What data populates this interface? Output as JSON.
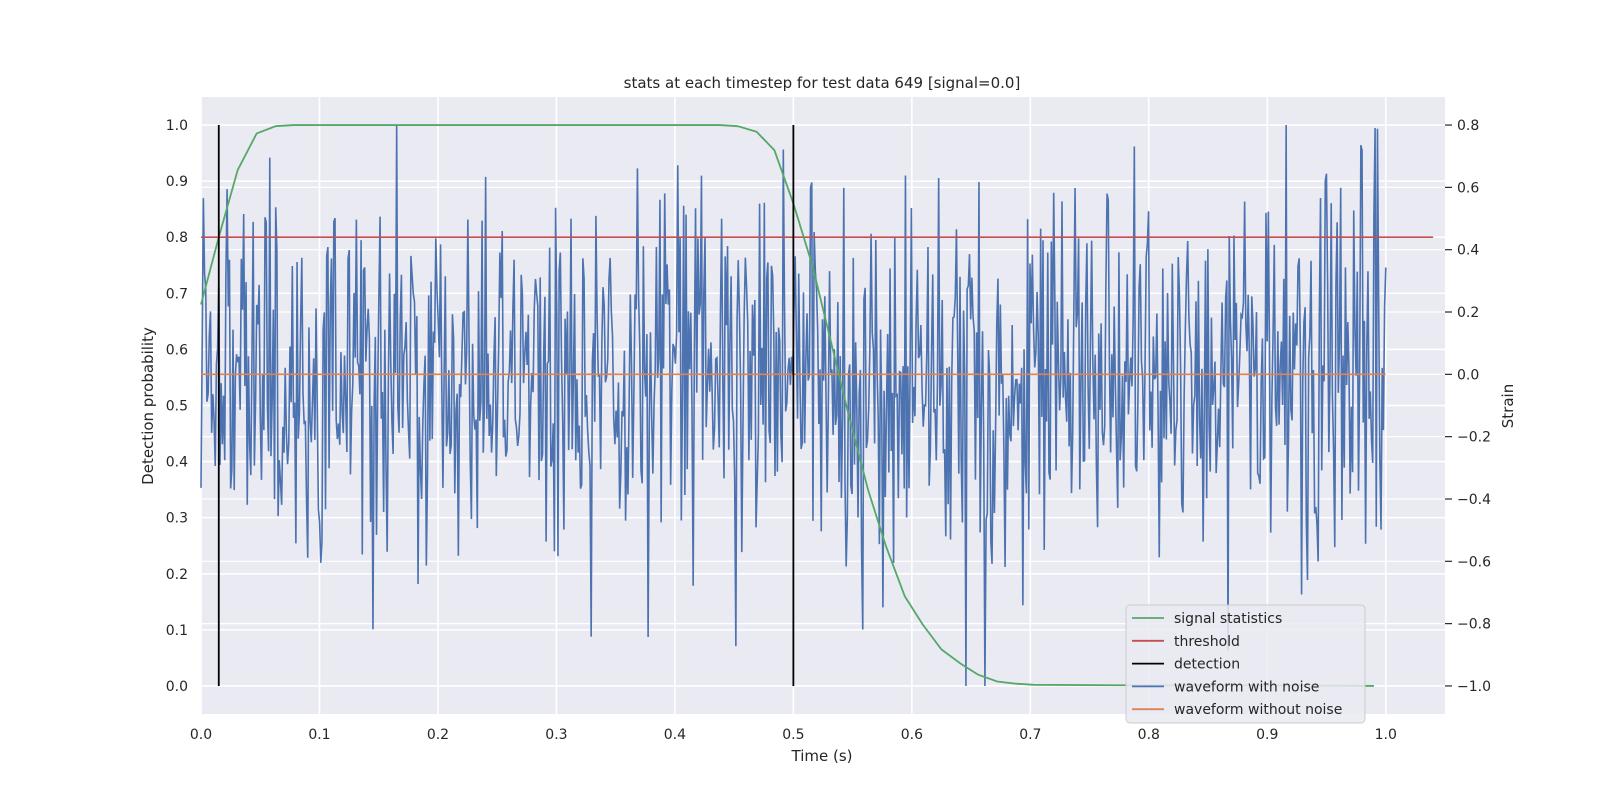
{
  "chart_data": {
    "type": "line",
    "title": "stats at each timestep for test data 649 [signal=0.0]",
    "xlabel": "Time (s)",
    "ylabel_left": "Detection probability",
    "ylabel_right": "Strain",
    "xlim": [
      0.0,
      1.05
    ],
    "ylim_left": [
      -0.05,
      1.05
    ],
    "ylim_right": [
      -1.09,
      0.89
    ],
    "x_ticks": [
      0.0,
      0.1,
      0.2,
      0.3,
      0.4,
      0.5,
      0.6,
      0.7,
      0.8,
      0.9,
      1.0
    ],
    "x_tick_labels": [
      "0.0",
      "0.1",
      "0.2",
      "0.3",
      "0.4",
      "0.5",
      "0.6",
      "0.7",
      "0.8",
      "0.9",
      "1.0"
    ],
    "y_left_ticks": [
      0.0,
      0.1,
      0.2,
      0.3,
      0.4,
      0.5,
      0.6,
      0.7,
      0.8,
      0.9,
      1.0
    ],
    "y_left_tick_labels": [
      "0.0",
      "0.1",
      "0.2",
      "0.3",
      "0.4",
      "0.5",
      "0.6",
      "0.7",
      "0.8",
      "0.9",
      "1.0"
    ],
    "y_right_ticks": [
      -1.0,
      -0.8,
      -0.6,
      -0.4,
      -0.2,
      0.0,
      0.2,
      0.4,
      0.6,
      0.8
    ],
    "y_right_tick_labels": [
      "−1.0",
      "−0.8",
      "−0.6",
      "−0.4",
      "−0.2",
      "0.0",
      "0.2",
      "0.4",
      "0.6",
      "0.8"
    ],
    "grid": true,
    "legend_placement": "lower-right",
    "series": [
      {
        "name": "signal statistics",
        "axis": "left",
        "color": "#55a868",
        "x": [
          0.0,
          0.015,
          0.031,
          0.047,
          0.063,
          0.078,
          0.094,
          0.2,
          0.3,
          0.4,
          0.438,
          0.453,
          0.469,
          0.484,
          0.5,
          0.516,
          0.531,
          0.547,
          0.563,
          0.578,
          0.594,
          0.609,
          0.625,
          0.641,
          0.656,
          0.672,
          0.688,
          0.703,
          0.8,
          0.9,
          0.99
        ],
        "y": [
          0.68,
          0.8,
          0.92,
          0.985,
          0.998,
          1.0,
          1.0,
          1.0,
          1.0,
          1.0,
          1.0,
          0.998,
          0.988,
          0.955,
          0.86,
          0.75,
          0.62,
          0.48,
          0.35,
          0.25,
          0.16,
          0.11,
          0.065,
          0.04,
          0.02,
          0.008,
          0.004,
          0.002,
          0.001,
          0.001,
          0.0
        ]
      },
      {
        "name": "threshold",
        "axis": "left",
        "color": "#c44e52",
        "x": [
          0.0,
          1.04
        ],
        "y": [
          0.8,
          0.8
        ]
      },
      {
        "name": "detection",
        "axis": "left",
        "color": "#000000",
        "segments": [
          {
            "x": 0.015,
            "y": [
              0.0,
              1.0
            ]
          },
          {
            "x": 0.5,
            "y": [
              0.0,
              1.0
            ]
          }
        ]
      },
      {
        "name": "waveform with noise",
        "axis": "right",
        "color": "#4c72b0",
        "points": 1000,
        "amplitude_std": 0.31,
        "x_start": 0.0,
        "x_end": 1.0
      },
      {
        "name": "waveform without noise",
        "axis": "right",
        "color": "#dd8452",
        "x": [
          0.0,
          1.0
        ],
        "y": [
          0.0,
          0.0
        ]
      }
    ]
  }
}
